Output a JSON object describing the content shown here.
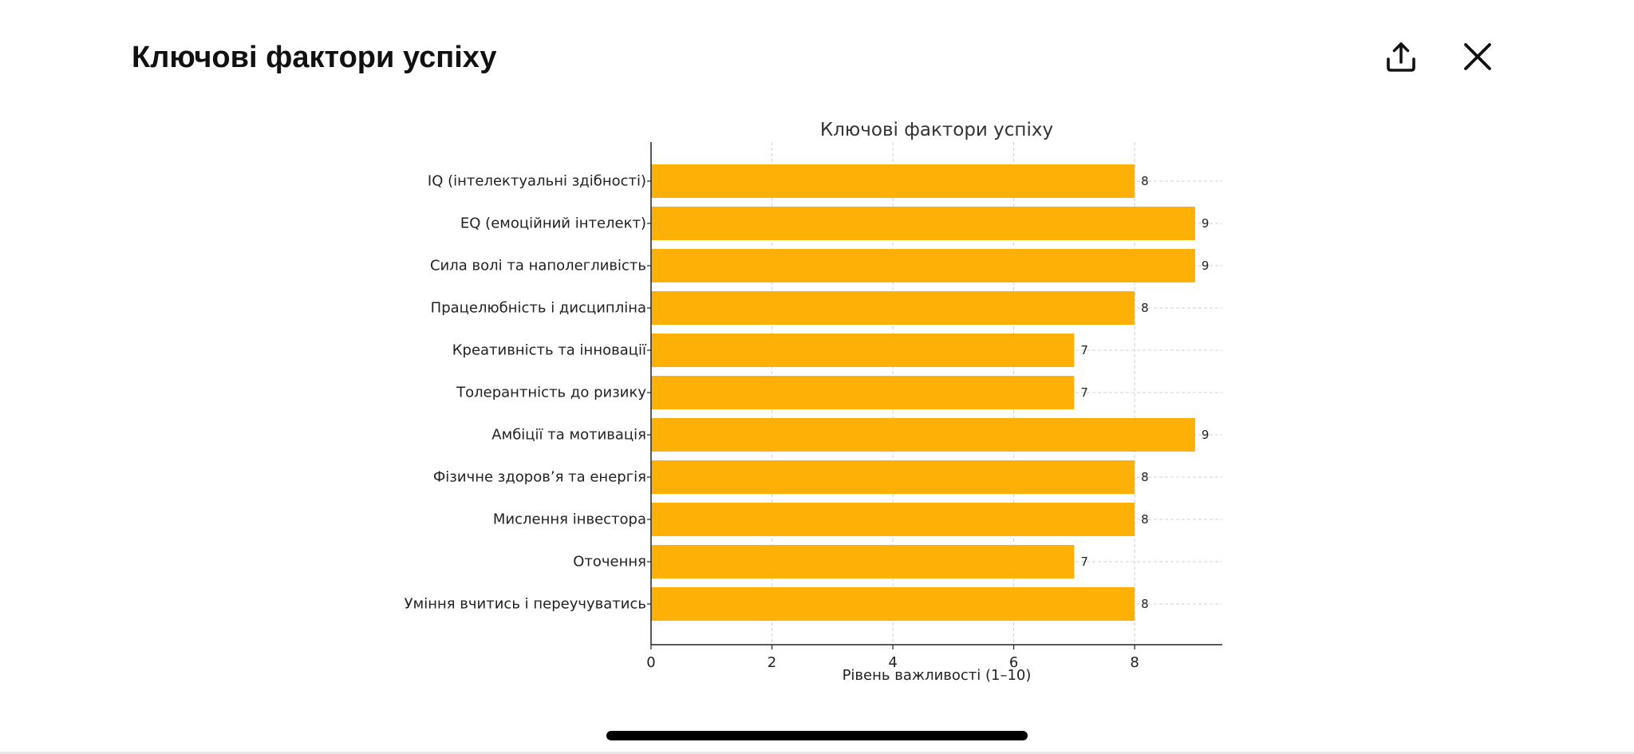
{
  "header": {
    "title": "Ключові фактори успіху"
  },
  "icons": {
    "share": "share-icon",
    "close": "close-icon"
  },
  "colors": {
    "bar": "#FFB006",
    "axis": "#222222",
    "grid": "#d0d0d0",
    "text": "#222222"
  },
  "chart_data": {
    "type": "bar",
    "orientation": "horizontal",
    "title": "Ключові фактори успіху",
    "xlabel": "Рівень важливості (1–10)",
    "ylabel": "",
    "xlim": [
      0,
      9.45
    ],
    "xticks": [
      0,
      2,
      4,
      6,
      8
    ],
    "grid": true,
    "categories": [
      "IQ (інтелектуальні здібності)",
      "EQ (емоційний інтелект)",
      "Сила волі та наполегливість",
      "Працелюбність і дисципліна",
      "Креативність та інновації",
      "Толерантність до ризику",
      "Амбіції та мотивація",
      "Фізичне здоров’я та енергія",
      "Мислення інвестора",
      "Оточення",
      "Уміння вчитись і переучуватись"
    ],
    "values": [
      8,
      9,
      9,
      8,
      7,
      7,
      9,
      8,
      8,
      7,
      8
    ],
    "data_labels": [
      "8",
      "9",
      "9",
      "8",
      "7",
      "7",
      "9",
      "8",
      "8",
      "7",
      "8"
    ]
  }
}
